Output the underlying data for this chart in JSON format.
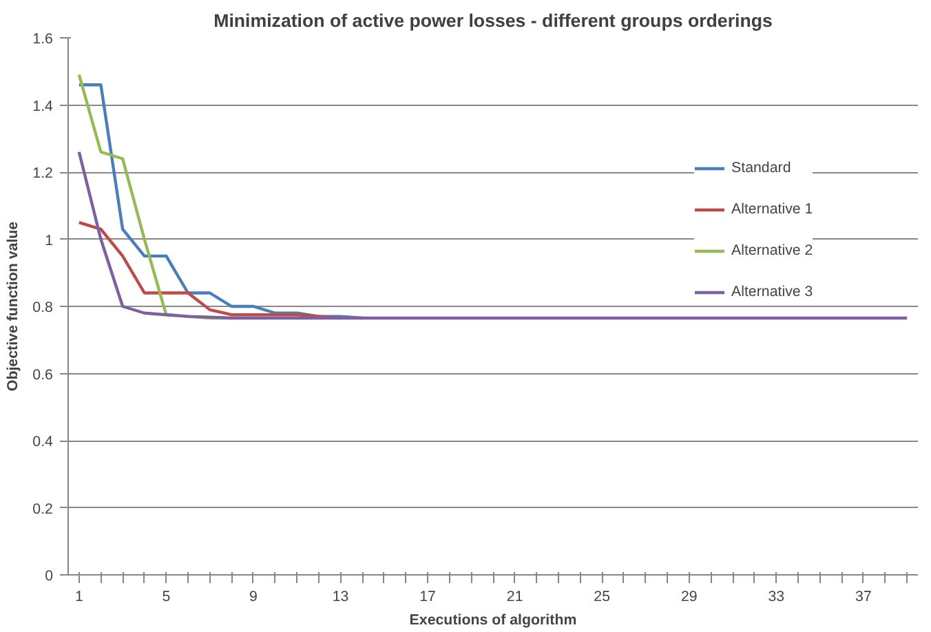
{
  "chart_data": {
    "type": "line",
    "title": "Minimization of active power losses - different groups orderings",
    "xlabel": "Executions of algorithm",
    "ylabel": "Objective function value",
    "categories": [
      "1",
      null,
      null,
      null,
      "5",
      null,
      null,
      null,
      "9",
      null,
      null,
      null,
      "13",
      null,
      null,
      null,
      "17",
      null,
      null,
      null,
      "21",
      null,
      null,
      null,
      "25",
      null,
      null,
      null,
      "29",
      null,
      null,
      null,
      "33",
      null,
      null,
      null,
      "37",
      null,
      null
    ],
    "series": [
      {
        "name": "Standard",
        "color": "#4a7ebb",
        "values": [
          1.46,
          1.46,
          1.03,
          0.95,
          0.95,
          0.84,
          0.84,
          0.8,
          0.8,
          0.78,
          0.78,
          0.77,
          0.77,
          0.765,
          null,
          null,
          null,
          null,
          null,
          null,
          null,
          null,
          null,
          null,
          null,
          null,
          null,
          null,
          null,
          null,
          null,
          null,
          null,
          null,
          null,
          null,
          null,
          null,
          null
        ]
      },
      {
        "name": "Alternative 1",
        "color": "#be4b48",
        "values": [
          1.05,
          1.03,
          0.95,
          0.84,
          0.84,
          0.84,
          0.79,
          0.775,
          0.775,
          0.775,
          0.775,
          0.77,
          0.765,
          null,
          null,
          null,
          null,
          null,
          null,
          null,
          null,
          null,
          null,
          null,
          null,
          null,
          null,
          null,
          null,
          null,
          null,
          null,
          null,
          null,
          null,
          null,
          null,
          null,
          null
        ]
      },
      {
        "name": "Alternative 2",
        "color": "#98b954",
        "values": [
          1.49,
          1.26,
          1.24,
          1.0,
          0.775,
          0.77,
          0.765,
          0.765,
          null,
          null,
          null,
          null,
          null,
          null,
          null,
          null,
          null,
          null,
          null,
          null,
          null,
          null,
          null,
          null,
          null,
          null,
          null,
          null,
          null,
          null,
          null,
          null,
          null,
          null,
          null,
          null,
          null,
          null,
          null
        ]
      },
      {
        "name": "Alternative 3",
        "color": "#7d60a0",
        "values": [
          1.26,
          1.0,
          0.8,
          0.78,
          0.775,
          0.77,
          0.768,
          0.765,
          0.765,
          0.765,
          0.765,
          0.765,
          0.765,
          0.765,
          0.765,
          0.765,
          0.765,
          0.765,
          0.765,
          0.765,
          0.765,
          0.765,
          0.765,
          0.765,
          0.765,
          0.765,
          0.765,
          0.765,
          0.765,
          0.765,
          0.765,
          0.765,
          0.765,
          0.765,
          0.765,
          0.765,
          0.765,
          0.765,
          0.765
        ]
      }
    ],
    "ylim": [
      0,
      1.6
    ],
    "yticks": [
      0,
      0.2,
      0.4,
      0.6,
      0.8,
      1,
      1.2,
      1.4,
      1.6
    ],
    "grid": "y",
    "legend": "right",
    "marker": "none",
    "line_style": "solid"
  }
}
